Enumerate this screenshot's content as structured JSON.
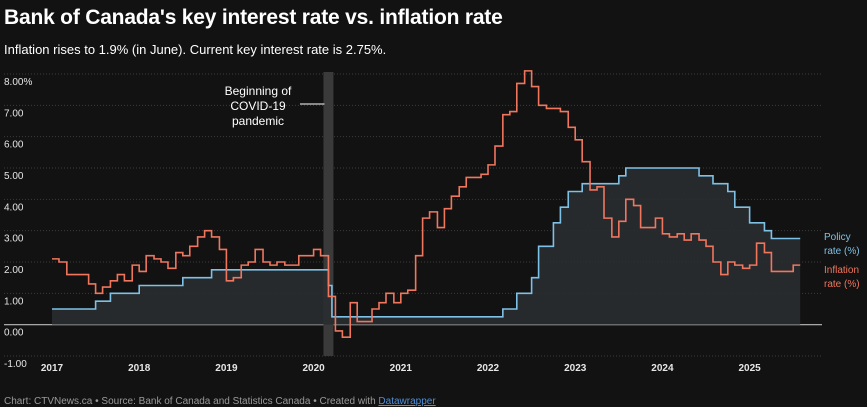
{
  "header": {
    "title": "Bank of Canada's key interest rate vs. inflation rate",
    "subtitle": "Inflation rises to 1.9% (in June). Current key interest rate is 2.75%."
  },
  "footer": {
    "text": "Chart: CTVNews.ca • Source: Bank of Canada and Statistics Canada • Created with ",
    "link": "Datawrapper"
  },
  "annotation": {
    "lines": [
      "Beginning of",
      "COVID-19",
      "pandemic"
    ],
    "date": 2020.17
  },
  "colors": {
    "policy": "#7ec1e6",
    "inflation": "#f0765e",
    "band": "#3a3a3a",
    "fill": "#2a2d31",
    "grid": "#3c3c3c",
    "zero": "#bdbdbd"
  },
  "chart_data": {
    "type": "line",
    "title": "Bank of Canada's key interest rate vs. inflation rate",
    "xlabel": "",
    "ylabel": "",
    "xlim": [
      2017.0,
      2025.83
    ],
    "ylim": [
      -1,
      8
    ],
    "y_ticks": [
      {
        "value": 8,
        "label": "8.00%"
      },
      {
        "value": 7,
        "label": "7.00"
      },
      {
        "value": 6,
        "label": "6.00"
      },
      {
        "value": 5,
        "label": "5.00"
      },
      {
        "value": 4,
        "label": "4.00"
      },
      {
        "value": 3,
        "label": "3.00"
      },
      {
        "value": 2,
        "label": "2.00"
      },
      {
        "value": 1,
        "label": "1.00"
      },
      {
        "value": 0,
        "label": "0.00"
      },
      {
        "value": -1,
        "label": "-1.00"
      }
    ],
    "x_ticks": [
      {
        "value": 2017,
        "label": "2017"
      },
      {
        "value": 2018,
        "label": "2018"
      },
      {
        "value": 2019,
        "label": "2019"
      },
      {
        "value": 2020,
        "label": "2020"
      },
      {
        "value": 2021,
        "label": "2021"
      },
      {
        "value": 2022,
        "label": "2022"
      },
      {
        "value": 2023,
        "label": "2023"
      },
      {
        "value": 2024,
        "label": "2024"
      },
      {
        "value": 2025,
        "label": "2025"
      }
    ],
    "grid": true,
    "series": [
      {
        "name": "Policy rate (%)",
        "label_lines": [
          "Policy",
          "rate (%)"
        ],
        "step": true,
        "points": [
          [
            2017.0,
            0.5
          ],
          [
            2017.5,
            0.75
          ],
          [
            2017.67,
            1.0
          ],
          [
            2018.0,
            1.25
          ],
          [
            2018.5,
            1.5
          ],
          [
            2018.83,
            1.75
          ],
          [
            2020.17,
            1.25
          ],
          [
            2020.21,
            0.25
          ],
          [
            2022.17,
            0.5
          ],
          [
            2022.33,
            1.0
          ],
          [
            2022.5,
            1.5
          ],
          [
            2022.58,
            2.5
          ],
          [
            2022.75,
            3.25
          ],
          [
            2022.83,
            3.75
          ],
          [
            2022.92,
            4.25
          ],
          [
            2023.08,
            4.5
          ],
          [
            2023.5,
            4.75
          ],
          [
            2023.58,
            5.0
          ],
          [
            2024.42,
            4.75
          ],
          [
            2024.58,
            4.5
          ],
          [
            2024.75,
            4.25
          ],
          [
            2024.83,
            3.75
          ],
          [
            2025.0,
            3.25
          ],
          [
            2025.17,
            3.0
          ],
          [
            2025.25,
            2.75
          ],
          [
            2025.58,
            2.75
          ]
        ]
      },
      {
        "name": "Inflation rate (%)",
        "label_lines": [
          "Inflation",
          "rate (%)"
        ],
        "step": true,
        "points": [
          [
            2017.0,
            2.1
          ],
          [
            2017.08,
            2.0
          ],
          [
            2017.17,
            1.6
          ],
          [
            2017.33,
            1.6
          ],
          [
            2017.42,
            1.3
          ],
          [
            2017.5,
            1.0
          ],
          [
            2017.58,
            1.2
          ],
          [
            2017.67,
            1.4
          ],
          [
            2017.75,
            1.6
          ],
          [
            2017.83,
            1.4
          ],
          [
            2017.92,
            1.9
          ],
          [
            2018.0,
            1.7
          ],
          [
            2018.08,
            2.2
          ],
          [
            2018.17,
            2.1
          ],
          [
            2018.25,
            2.0
          ],
          [
            2018.33,
            1.8
          ],
          [
            2018.42,
            2.3
          ],
          [
            2018.5,
            2.2
          ],
          [
            2018.58,
            2.5
          ],
          [
            2018.67,
            2.8
          ],
          [
            2018.75,
            3.0
          ],
          [
            2018.83,
            2.8
          ],
          [
            2018.92,
            2.4
          ],
          [
            2019.0,
            1.4
          ],
          [
            2019.08,
            1.5
          ],
          [
            2019.17,
            1.9
          ],
          [
            2019.25,
            2.0
          ],
          [
            2019.33,
            2.4
          ],
          [
            2019.42,
            2.0
          ],
          [
            2019.5,
            1.9
          ],
          [
            2019.58,
            2.0
          ],
          [
            2019.67,
            1.9
          ],
          [
            2019.75,
            1.9
          ],
          [
            2019.83,
            2.2
          ],
          [
            2019.92,
            2.2
          ],
          [
            2020.0,
            2.4
          ],
          [
            2020.08,
            2.2
          ],
          [
            2020.17,
            0.9
          ],
          [
            2020.25,
            -0.2
          ],
          [
            2020.33,
            -0.4
          ],
          [
            2020.42,
            0.7
          ],
          [
            2020.5,
            0.1
          ],
          [
            2020.58,
            0.1
          ],
          [
            2020.67,
            0.5
          ],
          [
            2020.75,
            0.7
          ],
          [
            2020.83,
            1.0
          ],
          [
            2020.92,
            0.7
          ],
          [
            2021.0,
            1.0
          ],
          [
            2021.08,
            1.1
          ],
          [
            2021.17,
            2.2
          ],
          [
            2021.25,
            3.4
          ],
          [
            2021.33,
            3.6
          ],
          [
            2021.42,
            3.1
          ],
          [
            2021.5,
            3.7
          ],
          [
            2021.58,
            4.1
          ],
          [
            2021.67,
            4.4
          ],
          [
            2021.75,
            4.7
          ],
          [
            2021.92,
            4.8
          ],
          [
            2022.0,
            5.1
          ],
          [
            2022.08,
            5.7
          ],
          [
            2022.17,
            6.7
          ],
          [
            2022.25,
            6.8
          ],
          [
            2022.33,
            7.7
          ],
          [
            2022.42,
            8.1
          ],
          [
            2022.5,
            7.6
          ],
          [
            2022.58,
            7.0
          ],
          [
            2022.67,
            6.9
          ],
          [
            2022.83,
            6.8
          ],
          [
            2022.92,
            6.3
          ],
          [
            2023.0,
            5.9
          ],
          [
            2023.08,
            5.2
          ],
          [
            2023.17,
            4.3
          ],
          [
            2023.25,
            4.4
          ],
          [
            2023.33,
            3.4
          ],
          [
            2023.42,
            2.8
          ],
          [
            2023.5,
            3.3
          ],
          [
            2023.58,
            4.0
          ],
          [
            2023.67,
            3.8
          ],
          [
            2023.75,
            3.1
          ],
          [
            2023.83,
            3.1
          ],
          [
            2023.92,
            3.4
          ],
          [
            2024.0,
            2.9
          ],
          [
            2024.08,
            2.8
          ],
          [
            2024.17,
            2.9
          ],
          [
            2024.25,
            2.7
          ],
          [
            2024.33,
            2.9
          ],
          [
            2024.42,
            2.7
          ],
          [
            2024.5,
            2.5
          ],
          [
            2024.58,
            2.0
          ],
          [
            2024.67,
            1.6
          ],
          [
            2024.75,
            2.0
          ],
          [
            2024.83,
            1.9
          ],
          [
            2024.92,
            1.8
          ],
          [
            2025.0,
            1.9
          ],
          [
            2025.08,
            2.6
          ],
          [
            2025.17,
            2.3
          ],
          [
            2025.25,
            1.7
          ],
          [
            2025.42,
            1.7
          ],
          [
            2025.5,
            1.9
          ],
          [
            2025.58,
            1.9
          ]
        ]
      }
    ]
  }
}
